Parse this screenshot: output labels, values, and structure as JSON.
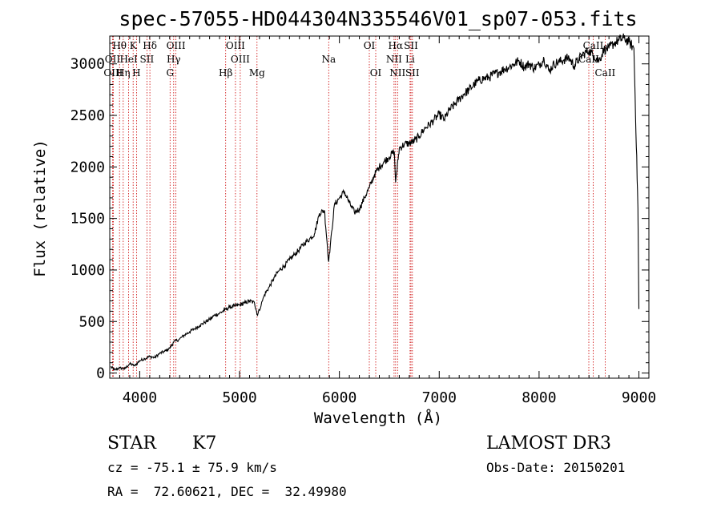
{
  "chart_data": {
    "type": "line",
    "title": "spec-57055-HD044304N335546V01_sp07-053.fits",
    "xlabel": "Wavelength (Å)",
    "ylabel": "Flux (relative)",
    "xlim": [
      3700,
      9100
    ],
    "ylim": [
      -50,
      3270
    ],
    "xticks": [
      4000,
      5000,
      6000,
      7000,
      8000,
      9000
    ],
    "yticks": [
      0,
      500,
      1000,
      1500,
      2000,
      2500,
      3000
    ],
    "series": [
      {
        "name": "spectrum",
        "x": [
          3710,
          3750,
          3800,
          3850,
          3900,
          3950,
          4000,
          4050,
          4100,
          4150,
          4200,
          4250,
          4300,
          4340,
          4400,
          4450,
          4500,
          4550,
          4600,
          4650,
          4700,
          4750,
          4800,
          4850,
          4900,
          4950,
          5000,
          5050,
          5100,
          5150,
          5180,
          5250,
          5300,
          5350,
          5400,
          5450,
          5500,
          5550,
          5600,
          5650,
          5700,
          5750,
          5800,
          5850,
          5893,
          5950,
          6000,
          6050,
          6100,
          6150,
          6200,
          6250,
          6300,
          6350,
          6400,
          6450,
          6500,
          6550,
          6563,
          6600,
          6650,
          6700,
          6750,
          6800,
          6850,
          6900,
          6950,
          7000,
          7050,
          7100,
          7150,
          7200,
          7250,
          7300,
          7350,
          7400,
          7450,
          7500,
          7550,
          7600,
          7650,
          7700,
          7750,
          7800,
          7850,
          7900,
          7950,
          8000,
          8050,
          8100,
          8150,
          8200,
          8250,
          8300,
          8350,
          8400,
          8450,
          8500,
          8550,
          8600,
          8650,
          8700,
          8750,
          8800,
          8850,
          8900,
          8950,
          8990,
          9000
        ],
        "y": [
          60,
          30,
          50,
          40,
          90,
          70,
          120,
          140,
          160,
          150,
          190,
          210,
          240,
          300,
          330,
          370,
          400,
          430,
          460,
          490,
          520,
          560,
          580,
          610,
          640,
          650,
          660,
          680,
          700,
          680,
          560,
          760,
          840,
          930,
          1000,
          1040,
          1100,
          1150,
          1200,
          1260,
          1300,
          1350,
          1550,
          1580,
          1080,
          1630,
          1700,
          1760,
          1650,
          1560,
          1590,
          1700,
          1800,
          1920,
          2000,
          2050,
          2100,
          2150,
          1850,
          2180,
          2220,
          2230,
          2250,
          2300,
          2370,
          2410,
          2460,
          2510,
          2460,
          2550,
          2600,
          2660,
          2710,
          2750,
          2800,
          2840,
          2860,
          2870,
          2900,
          2920,
          2950,
          2970,
          3000,
          3030,
          2970,
          3000,
          2960,
          2990,
          3050,
          2930,
          3000,
          3020,
          3040,
          3060,
          2980,
          3050,
          3100,
          3130,
          3080,
          3030,
          3140,
          3150,
          3200,
          3230,
          3250,
          3210,
          3150,
          1600,
          620
        ]
      }
    ],
    "lines_top_row": [
      {
        "label": "Hθ",
        "x": 3798
      },
      {
        "label": "K",
        "x": 3934
      },
      {
        "label": "Hδ",
        "x": 4102
      },
      {
        "label": "OIII",
        "x": 4363
      },
      {
        "label": "OIII",
        "x": 4959
      },
      {
        "label": "OI",
        "x": 6300
      },
      {
        "label": "Hα",
        "x": 6563
      },
      {
        "label": "SII",
        "x": 6717
      },
      {
        "label": "CaII",
        "x": 8542
      }
    ],
    "lines_mid_row": [
      {
        "label": "OII",
        "x": 3727
      },
      {
        "label": "HeI",
        "x": 3889
      },
      {
        "label": "SII",
        "x": 4072
      },
      {
        "label": "Hγ",
        "x": 4340
      },
      {
        "label": "OIII",
        "x": 5007
      },
      {
        "label": "Na",
        "x": 5893
      },
      {
        "label": "NII",
        "x": 6548
      },
      {
        "label": "Li",
        "x": 6708
      },
      {
        "label": "CaII",
        "x": 8498
      }
    ],
    "lines_low_row": [
      {
        "label": "OIII",
        "x": 3735
      },
      {
        "label": "Hη",
        "x": 3835
      },
      {
        "label": "H",
        "x": 3968
      },
      {
        "label": "G",
        "x": 4304
      },
      {
        "label": "Hβ",
        "x": 4861
      },
      {
        "label": "Mg",
        "x": 5175
      },
      {
        "label": "OI",
        "x": 6364
      },
      {
        "label": "NII",
        "x": 6583
      },
      {
        "label": "SII",
        "x": 6731
      },
      {
        "label": "CaII",
        "x": 8662
      }
    ]
  },
  "info": {
    "object_class": "STAR",
    "subclass": "K7",
    "survey": "LAMOST DR3",
    "cz": "cz = -75.1 ± 75.9 km/s",
    "obs_date": "Obs-Date: 20150201",
    "coords": "RA =  72.60621, DEC =  32.49980"
  },
  "colors": {
    "line_marker": "#cc0000",
    "spectrum": "#000000"
  }
}
